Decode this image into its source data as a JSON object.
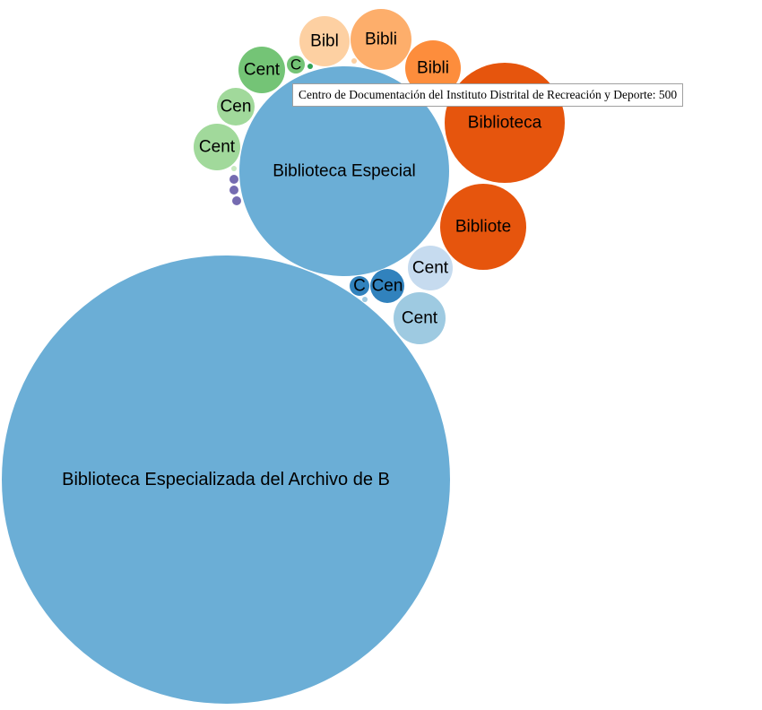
{
  "chart_data": {
    "type": "bubble",
    "nodes": [
      {
        "label": "Biblioteca Especializada del Archivo de B",
        "color": "#6baed6"
      },
      {
        "label": "Biblioteca Especial",
        "color": "#6baed6"
      },
      {
        "label": "Biblioteca",
        "color": "#e6550d"
      },
      {
        "label": "Bibliote",
        "color": "#e6550d"
      },
      {
        "label": "Bibli",
        "color": "#fdae6b"
      },
      {
        "label": "Bibli",
        "color": "#fd8d3c"
      },
      {
        "label": "Bibl",
        "color": "#fdd0a2"
      },
      {
        "label": "Cent",
        "color": "#74c476"
      },
      {
        "label": "C",
        "color": "#74c476"
      },
      {
        "label": "",
        "color": "#31a354"
      },
      {
        "label": "Cen",
        "color": "#a1d99b"
      },
      {
        "label": "Cent",
        "color": "#a1d99b"
      },
      {
        "label": "",
        "color": "#c7e9c0"
      },
      {
        "label": "",
        "color": "#756bb1"
      },
      {
        "label": "",
        "color": "#756bb1"
      },
      {
        "label": "",
        "color": "#756bb1"
      },
      {
        "label": "Cent",
        "color": "#c6dbef"
      },
      {
        "label": "Cen",
        "color": "#3182bd"
      },
      {
        "label": "C",
        "color": "#3182bd"
      },
      {
        "label": "",
        "color": "#9ecae1"
      },
      {
        "label": "Cent",
        "color": "#9ecae1"
      },
      {
        "label": "",
        "color": "#fdd0a2"
      }
    ]
  },
  "tooltip": {
    "text": "Centro de Documentación del Instituto Distrital de Recreación y Deporte: 500"
  }
}
